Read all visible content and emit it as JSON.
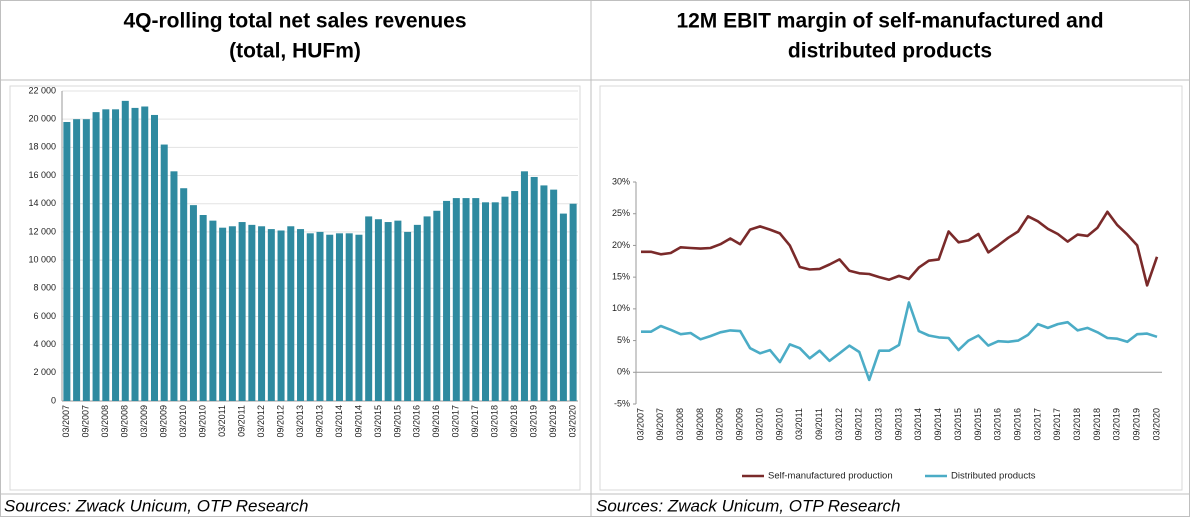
{
  "chart_data": [
    {
      "type": "bar",
      "title": [
        "4Q-rolling total net sales revenues",
        "(total, HUFm)"
      ],
      "source": "Sources: Zwack Unicum, OTP Research",
      "categories": [
        "03/2007",
        null,
        "09/2007",
        null,
        "03/2008",
        null,
        "09/2008",
        null,
        "03/2009",
        null,
        "09/2009",
        null,
        "03/2010",
        null,
        "09/2010",
        null,
        "03/2011",
        null,
        "09/2011",
        null,
        "03/2012",
        null,
        "09/2012",
        null,
        "03/2013",
        null,
        "09/2013",
        null,
        "03/2014",
        null,
        "09/2014",
        null,
        "03/2015",
        null,
        "09/2015",
        null,
        "03/2016",
        null,
        "09/2016",
        null,
        "03/2017",
        null,
        "09/2017",
        null,
        "03/2018",
        null,
        "09/2018",
        null,
        "03/2019",
        null,
        "09/2019",
        null,
        "03/2020"
      ],
      "values": [
        19800,
        20000,
        20000,
        20500,
        20700,
        20700,
        21300,
        20800,
        20900,
        20300,
        18200,
        16300,
        15100,
        13900,
        13200,
        12800,
        12300,
        12400,
        12700,
        12500,
        12400,
        12200,
        12100,
        12400,
        12200,
        11900,
        12000,
        11800,
        11900,
        11900,
        11800,
        13100,
        12900,
        12700,
        12800,
        12000,
        12500,
        13100,
        13500,
        14200,
        14400,
        14400,
        14400,
        14100,
        14100,
        14500,
        14900,
        16300,
        15900,
        15300,
        15000,
        13300,
        14000
      ],
      "color": "#2e8aa0",
      "ylim": [
        0,
        22000
      ],
      "yticks": [
        0,
        {
          "value": 2000,
          "label": "2 000"
        },
        {
          "value": 4000,
          "label": "4 000"
        },
        {
          "value": 6000,
          "label": "6 000"
        },
        {
          "value": 8000,
          "label": "8 000"
        },
        {
          "value": 10000,
          "label": "10 000"
        },
        {
          "value": 12000,
          "label": "12 000"
        },
        {
          "value": 14000,
          "label": "14 000"
        },
        {
          "value": 16000,
          "label": "16 000"
        },
        {
          "value": 18000,
          "label": "18 000"
        },
        {
          "value": 20000,
          "label": "20 000"
        },
        {
          "value": 22000,
          "label": "22 000"
        }
      ],
      "grid": true
    },
    {
      "type": "line",
      "title": [
        "12M EBIT margin of self-manufactured and",
        "distributed products"
      ],
      "source": "Sources: Zwack Unicum, OTP Research",
      "categories": [
        "03/2007",
        null,
        "09/2007",
        null,
        "03/2008",
        null,
        "09/2008",
        null,
        "03/2009",
        null,
        "09/2009",
        null,
        "03/2010",
        null,
        "09/2010",
        null,
        "03/2011",
        null,
        "09/2011",
        null,
        "03/2012",
        null,
        "09/2012",
        null,
        "03/2013",
        null,
        "09/2013",
        null,
        "03/2014",
        null,
        "09/2014",
        null,
        "03/2015",
        null,
        "09/2015",
        null,
        "03/2016",
        null,
        "09/2016",
        null,
        "03/2017",
        null,
        "09/2017",
        null,
        "03/2018",
        null,
        "09/2018",
        null,
        "03/2019",
        null,
        "09/2019",
        null,
        "03/2020"
      ],
      "series": [
        {
          "name": "Self-manufactured production",
          "color": "#7a2a2a",
          "values": [
            19.0,
            19.0,
            18.6,
            18.8,
            19.7,
            19.6,
            19.5,
            19.6,
            20.2,
            21.1,
            20.2,
            22.5,
            23.0,
            22.5,
            21.9,
            20.0,
            16.6,
            16.2,
            16.3,
            17.0,
            17.8,
            16.0,
            15.6,
            15.5,
            15.0,
            14.6,
            15.2,
            14.7,
            16.5,
            17.6,
            17.8,
            22.2,
            20.5,
            20.8,
            21.8,
            18.9,
            20.0,
            21.2,
            22.2,
            24.6,
            23.8,
            22.6,
            21.8,
            20.6,
            21.7,
            21.5,
            22.8,
            25.3,
            23.2,
            21.7,
            20.0,
            13.7,
            18.2
          ]
        },
        {
          "name": "Distributed products",
          "color": "#4bacc6",
          "values": [
            6.4,
            6.4,
            7.3,
            6.7,
            6.0,
            6.2,
            5.2,
            5.7,
            6.3,
            6.6,
            6.5,
            3.8,
            3.0,
            3.5,
            1.6,
            4.4,
            3.8,
            2.2,
            3.4,
            1.8,
            3.0,
            4.2,
            3.2,
            -1.2,
            3.4,
            3.4,
            4.3,
            11.0,
            6.5,
            5.8,
            5.5,
            5.4,
            3.5,
            5.0,
            5.8,
            4.2,
            4.9,
            4.8,
            5.0,
            5.9,
            7.6,
            7.0,
            7.6,
            7.9,
            6.6,
            7.0,
            6.3,
            5.4,
            5.3,
            4.8,
            6.0,
            6.1,
            5.6
          ]
        }
      ],
      "ylim": [
        -5,
        30
      ],
      "yticks": [
        {
          "value": -5,
          "label": "-5%"
        },
        {
          "value": 0,
          "label": "0%"
        },
        {
          "value": 5,
          "label": "5%"
        },
        {
          "value": 10,
          "label": "10%"
        },
        {
          "value": 15,
          "label": "15%"
        },
        {
          "value": 20,
          "label": "20%"
        },
        {
          "value": 25,
          "label": "25%"
        },
        {
          "value": 30,
          "label": "30%"
        }
      ],
      "grid": false,
      "legend": "bottom"
    }
  ]
}
